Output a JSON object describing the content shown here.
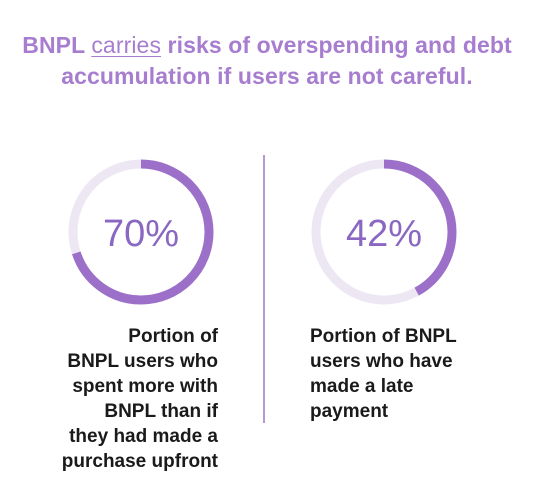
{
  "headline": {
    "part1": "BNPL ",
    "link_word": "carries",
    "part2": " risks of overspending and debt accumulation if users are not careful."
  },
  "colors": {
    "accent": "#a77dcf",
    "ring_fill": "#9c6fc9",
    "ring_track": "#ede7f4",
    "label": "#8a68c2",
    "caption": "#1a1a1a"
  },
  "chart_data": [
    {
      "type": "pie",
      "value": 70,
      "max": 100,
      "label": "70%",
      "caption_lines": [
        "Portion of",
        "BNPL users who",
        "spent more with",
        "BNPL than if",
        "they had made a",
        "purchase upfront"
      ]
    },
    {
      "type": "pie",
      "value": 42,
      "max": 100,
      "label": "42%",
      "caption_lines": [
        "Portion of BNPL",
        "users who have",
        "made a late",
        "payment"
      ]
    }
  ]
}
